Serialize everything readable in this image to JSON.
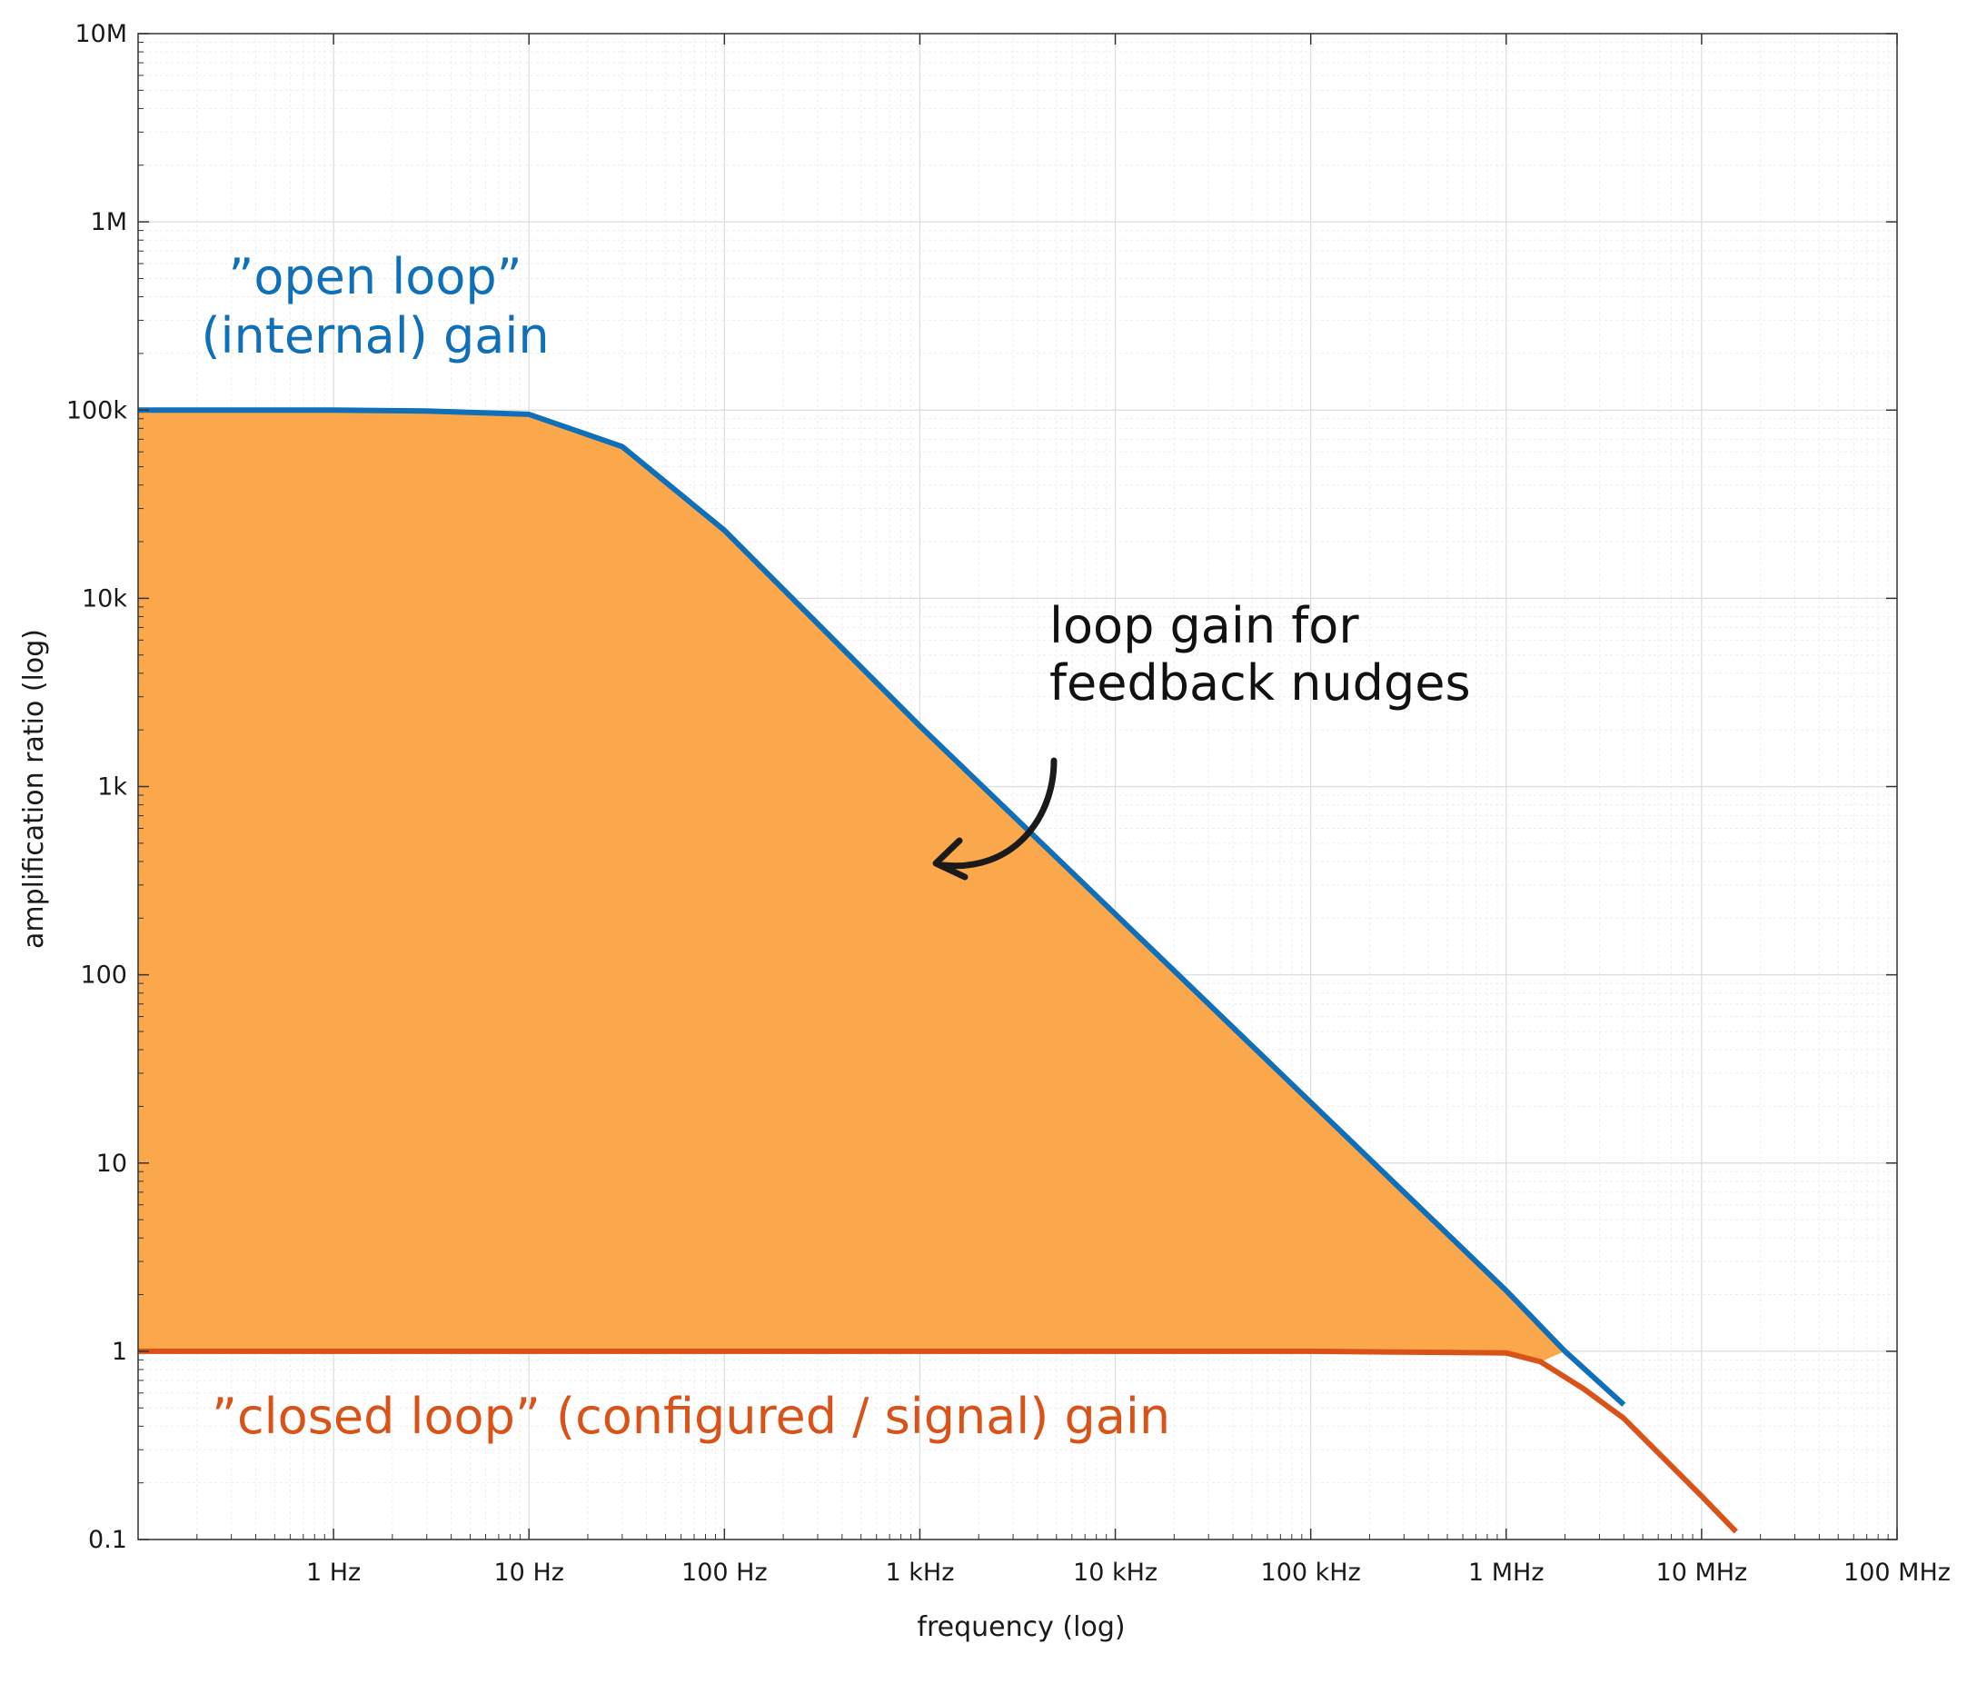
{
  "chart_data": {
    "type": "area",
    "xlabel": "frequency (log)",
    "ylabel": "amplification ratio (log)",
    "xscale": "log",
    "yscale": "log",
    "xlim": [
      0.1,
      100000000
    ],
    "ylim": [
      0.1,
      10000000
    ],
    "grid": true,
    "x_ticks": [
      {
        "value": 1,
        "label": "1 Hz"
      },
      {
        "value": 10,
        "label": "10 Hz"
      },
      {
        "value": 100,
        "label": "100 Hz"
      },
      {
        "value": 1000,
        "label": "1 kHz"
      },
      {
        "value": 10000,
        "label": "10 kHz"
      },
      {
        "value": 100000,
        "label": "100 kHz"
      },
      {
        "value": 1000000,
        "label": "1 MHz"
      },
      {
        "value": 10000000,
        "label": "10 MHz"
      },
      {
        "value": 100000000,
        "label": "100 MHz"
      }
    ],
    "y_ticks": [
      {
        "value": 0.1,
        "label": "0.1"
      },
      {
        "value": 1,
        "label": "1"
      },
      {
        "value": 10,
        "label": "10"
      },
      {
        "value": 100,
        "label": "100"
      },
      {
        "value": 1000,
        "label": "1k"
      },
      {
        "value": 10000,
        "label": "10k"
      },
      {
        "value": 100000,
        "label": "100k"
      },
      {
        "value": 1000000,
        "label": "1M"
      },
      {
        "value": 10000000,
        "label": "10M"
      }
    ],
    "series": [
      {
        "key": "open",
        "color": "#0f6fb8",
        "x": [
          0.1,
          1,
          3,
          10,
          30,
          100,
          1000,
          10000,
          100000,
          1000000,
          2000000,
          4000000
        ],
        "y": [
          100000,
          100000,
          99000,
          95000,
          64000,
          23000,
          2100,
          210,
          21,
          2.1,
          1,
          0.52
        ]
      },
      {
        "key": "closed",
        "color": "#d95319",
        "x": [
          0.1,
          1,
          10,
          100,
          1000,
          10000,
          100000,
          1000000,
          1500000,
          2500000,
          4000000,
          10000000,
          15000000
        ],
        "y": [
          1,
          1,
          1,
          1,
          1,
          1,
          1,
          0.98,
          0.88,
          0.63,
          0.44,
          0.17,
          0.11
        ]
      }
    ],
    "fill_between": {
      "upper": "open",
      "lower": "closed",
      "color": "#fba84c"
    },
    "annotations": {
      "open_line1": "”open loop”",
      "open_line2": "(internal) gain",
      "closed": "”closed loop” (configured / signal) gain",
      "loop_line1": "loop gain for",
      "loop_line2": "feedback nudges"
    },
    "colors": {
      "open": "#0f6fb8",
      "closed": "#d95319",
      "fill": "#fba84c",
      "grid_major": "#dcdcdc",
      "grid_minor": "#eeeeee",
      "axes": "#333333"
    }
  }
}
